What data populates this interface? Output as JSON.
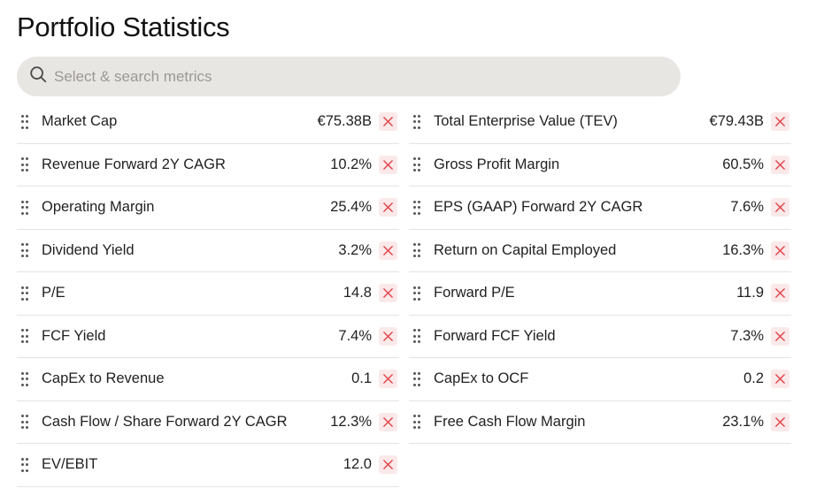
{
  "header": {
    "title": "Portfolio Statistics"
  },
  "search": {
    "placeholder": "Select & search metrics",
    "value": ""
  },
  "metrics": {
    "left": [
      {
        "label": "Market Cap",
        "value": "€75.38B"
      },
      {
        "label": "Revenue Forward 2Y CAGR",
        "value": "10.2%"
      },
      {
        "label": "Operating Margin",
        "value": "25.4%"
      },
      {
        "label": "Dividend Yield",
        "value": "3.2%"
      },
      {
        "label": "P/E",
        "value": "14.8"
      },
      {
        "label": "FCF Yield",
        "value": "7.4%"
      },
      {
        "label": "CapEx to Revenue",
        "value": "0.1"
      },
      {
        "label": "Cash Flow / Share Forward 2Y CAGR",
        "value": "12.3%"
      },
      {
        "label": "EV/EBIT",
        "value": "12.0"
      }
    ],
    "right": [
      {
        "label": "Total Enterprise Value (TEV)",
        "value": "€79.43B"
      },
      {
        "label": "Gross Profit Margin",
        "value": "60.5%"
      },
      {
        "label": "EPS (GAAP) Forward 2Y CAGR",
        "value": "7.6%"
      },
      {
        "label": "Return on Capital Employed",
        "value": "16.3%"
      },
      {
        "label": "Forward P/E",
        "value": "11.9"
      },
      {
        "label": "Forward FCF Yield",
        "value": "7.3%"
      },
      {
        "label": "CapEx to OCF",
        "value": "0.2"
      },
      {
        "label": "Free Cash Flow Margin",
        "value": "23.1%"
      }
    ]
  },
  "icons": {
    "search": "search-icon",
    "drag": "drag-handle-icon",
    "remove": "close-icon"
  },
  "colors": {
    "search_bg": "#e8e6e3",
    "remove_bg": "#fbe9e9",
    "remove_x": "#e0484f",
    "divider": "#e3e3e3"
  }
}
